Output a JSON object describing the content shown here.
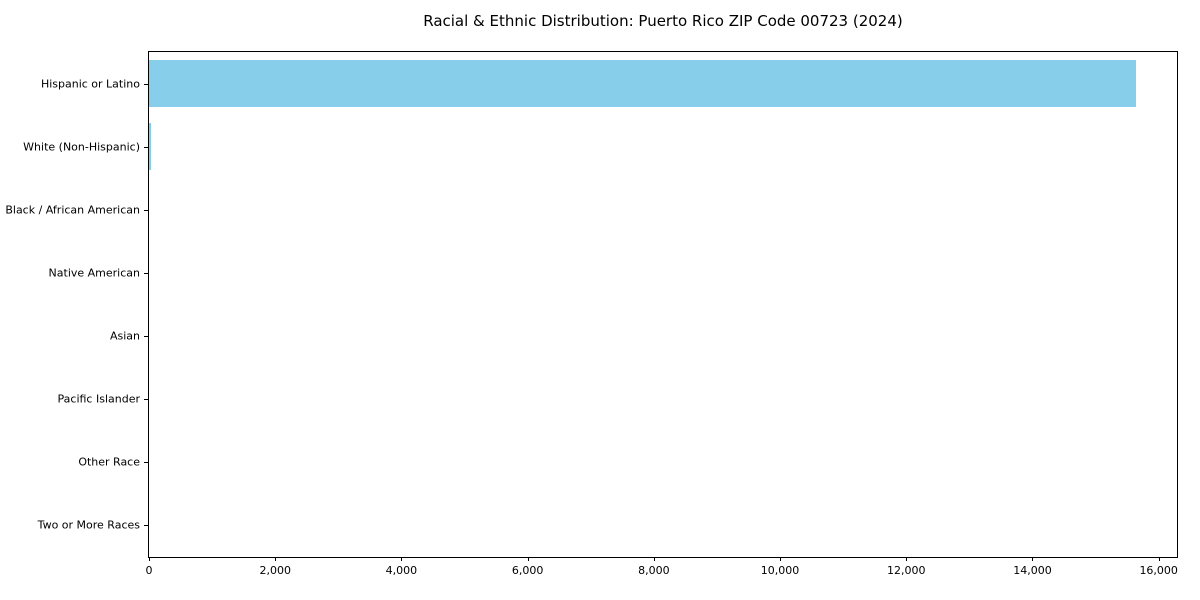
{
  "chart_data": {
    "type": "bar",
    "orientation": "horizontal",
    "title": "Racial & Ethnic Distribution: Puerto Rico ZIP Code 00723 (2024)",
    "categories": [
      "Hispanic or Latino",
      "White (Non-Hispanic)",
      "Black / African American",
      "Native American",
      "Asian",
      "Pacific Islander",
      "Other Race",
      "Two or More Races"
    ],
    "values": [
      15636,
      25,
      0,
      0,
      0,
      0,
      0,
      0
    ],
    "bar_color": "#87CEEB",
    "xlabel": "",
    "ylabel": "",
    "xlim": [
      0,
      16290
    ],
    "x_ticks": [
      0,
      2000,
      4000,
      6000,
      8000,
      10000,
      12000,
      14000,
      16000
    ],
    "x_tick_labels": [
      "0",
      "2,000",
      "4,000",
      "6,000",
      "8,000",
      "10,000",
      "12,000",
      "14,000",
      "16,000"
    ],
    "grid": false,
    "legend": false,
    "background_color": "#ffffff",
    "spine_color": "#000000",
    "text_color": "#000000"
  }
}
